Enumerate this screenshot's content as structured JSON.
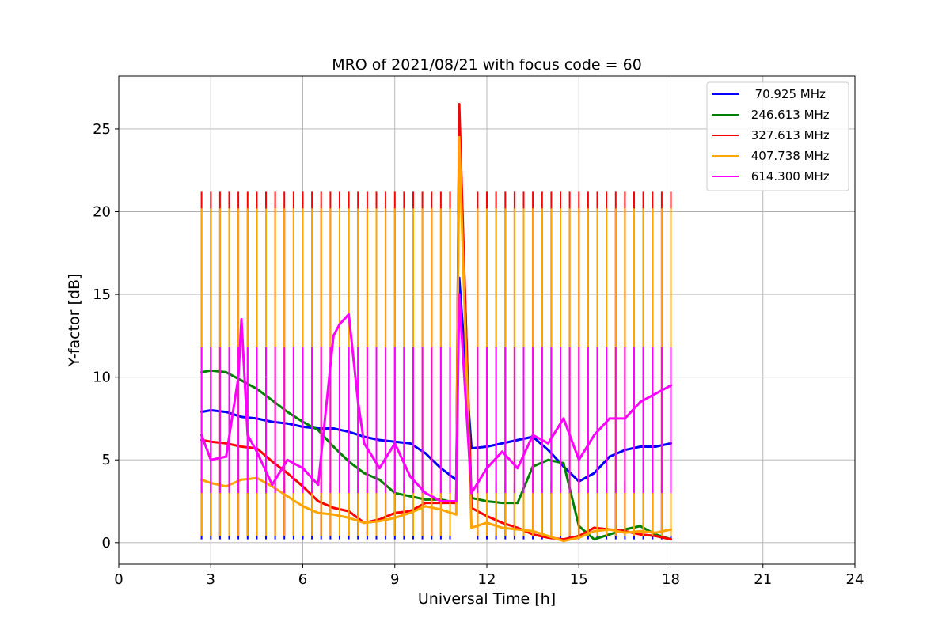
{
  "chart_data": {
    "type": "line",
    "title": "MRO of 2021/08/21 with focus code = 60",
    "xlabel": "Universal Time [h]",
    "ylabel": "Y-factor [dB]",
    "xlim": [
      0,
      24
    ],
    "ylim": [
      -1.3,
      28.2
    ],
    "xticks": [
      0,
      3,
      6,
      9,
      12,
      15,
      18,
      21,
      24
    ],
    "yticks": [
      0,
      5,
      10,
      15,
      20,
      25
    ],
    "grid": true,
    "legend_position": "top-right",
    "calibration": {
      "start": 2.7,
      "end": 18.0,
      "period": 0.3,
      "gap": [
        11.1,
        11.5
      ]
    },
    "series": [
      {
        "name": "  70.925 MHz",
        "color": "#0000ff",
        "pulse_high": 3.6,
        "pulse_low": 0.2,
        "x": [
          2.7,
          3.0,
          3.5,
          4.0,
          4.5,
          5.0,
          5.5,
          6.0,
          6.5,
          7.0,
          7.5,
          8.0,
          8.5,
          9.0,
          9.5,
          10.0,
          10.5,
          11.0,
          11.1,
          11.5,
          12.0,
          12.5,
          13.0,
          13.5,
          14.0,
          14.5,
          15.0,
          15.5,
          16.0,
          16.5,
          17.0,
          17.5,
          18.0
        ],
        "y": [
          7.9,
          8.0,
          7.9,
          7.6,
          7.5,
          7.3,
          7.2,
          7.0,
          6.9,
          6.9,
          6.7,
          6.4,
          6.2,
          6.1,
          6.0,
          5.4,
          4.5,
          3.8,
          16.0,
          5.7,
          5.8,
          6.0,
          6.2,
          6.4,
          5.6,
          4.6,
          3.7,
          4.2,
          5.2,
          5.6,
          5.8,
          5.8,
          6.0
        ]
      },
      {
        "name": " 246.613 MHz",
        "color": "#008000",
        "x": [
          2.7,
          3.0,
          3.5,
          4.0,
          4.5,
          5.0,
          5.5,
          6.0,
          6.5,
          7.0,
          7.5,
          8.0,
          8.5,
          9.0,
          9.5,
          10.0,
          10.5,
          11.0,
          11.1,
          11.5,
          12.0,
          12.5,
          13.0,
          13.5,
          14.0,
          14.5,
          15.0,
          15.5,
          16.0,
          16.5,
          17.0,
          17.5,
          18.0
        ],
        "y": [
          10.3,
          10.4,
          10.3,
          9.8,
          9.3,
          8.6,
          7.9,
          7.3,
          6.8,
          5.8,
          4.9,
          4.2,
          3.8,
          3.0,
          2.8,
          2.6,
          2.6,
          2.4,
          25.8,
          2.7,
          2.5,
          2.4,
          2.4,
          4.6,
          5.0,
          4.8,
          1.0,
          0.2,
          0.5,
          0.8,
          1.0,
          0.5,
          0.2
        ]
      },
      {
        "name": " 327.613 MHz",
        "color": "#ff0000",
        "pulse_high": 21.2,
        "pulse_low": 0.4,
        "x": [
          2.7,
          3.0,
          3.5,
          4.0,
          4.5,
          5.0,
          5.5,
          6.0,
          6.5,
          7.0,
          7.5,
          8.0,
          8.5,
          9.0,
          9.5,
          10.0,
          10.5,
          11.0,
          11.1,
          11.5,
          12.0,
          12.5,
          13.0,
          13.5,
          14.0,
          14.5,
          15.0,
          15.5,
          16.0,
          16.5,
          17.0,
          17.5,
          18.0
        ],
        "y": [
          6.2,
          6.1,
          6.0,
          5.8,
          5.7,
          4.9,
          4.2,
          3.4,
          2.5,
          2.1,
          1.9,
          1.2,
          1.4,
          1.8,
          1.9,
          2.4,
          2.4,
          2.4,
          26.5,
          2.1,
          1.6,
          1.2,
          0.9,
          0.5,
          0.3,
          0.2,
          0.4,
          0.9,
          0.8,
          0.7,
          0.5,
          0.4,
          0.2
        ]
      },
      {
        "name": " 407.738 MHz",
        "color": "#ffa500",
        "pulse_high": 20.2,
        "pulse_low": 0.4,
        "x": [
          2.7,
          3.0,
          3.5,
          4.0,
          4.5,
          5.0,
          5.5,
          6.0,
          6.5,
          7.0,
          7.5,
          8.0,
          8.5,
          9.0,
          9.5,
          10.0,
          10.5,
          11.0,
          11.1,
          11.5,
          12.0,
          12.5,
          13.0,
          13.5,
          14.0,
          14.5,
          15.0,
          15.5,
          16.0,
          16.5,
          17.0,
          17.5,
          18.0
        ],
        "y": [
          3.8,
          3.6,
          3.4,
          3.8,
          3.9,
          3.4,
          2.8,
          2.2,
          1.8,
          1.7,
          1.5,
          1.2,
          1.3,
          1.5,
          1.8,
          2.2,
          2.0,
          1.7,
          24.5,
          0.9,
          1.2,
          0.9,
          0.8,
          0.7,
          0.4,
          0.1,
          0.3,
          0.7,
          0.8,
          0.6,
          0.7,
          0.6,
          0.8
        ]
      },
      {
        "name": " 614.300 MHz",
        "color": "#ff00ff",
        "pulse_high": 11.8,
        "pulse_low": 3.0,
        "x": [
          2.7,
          3.0,
          3.5,
          3.9,
          4.0,
          4.2,
          4.5,
          5.0,
          5.5,
          6.0,
          6.5,
          7.0,
          7.2,
          7.5,
          7.8,
          8.0,
          8.5,
          9.0,
          9.5,
          10.0,
          10.5,
          11.0,
          11.1,
          11.5,
          12.0,
          12.5,
          13.0,
          13.5,
          14.0,
          14.5,
          15.0,
          15.5,
          16.0,
          16.5,
          17.0,
          17.5,
          18.0
        ],
        "y": [
          6.5,
          5.0,
          5.2,
          10.0,
          13.5,
          6.5,
          5.5,
          3.5,
          5.0,
          4.5,
          3.5,
          12.5,
          13.2,
          13.8,
          8.5,
          6.0,
          4.5,
          6.0,
          4.0,
          3.0,
          2.5,
          2.5,
          15.0,
          3.0,
          4.5,
          5.5,
          4.5,
          6.5,
          6.0,
          7.5,
          5.0,
          6.5,
          7.5,
          7.5,
          8.5,
          9.0,
          9.5
        ]
      }
    ]
  }
}
